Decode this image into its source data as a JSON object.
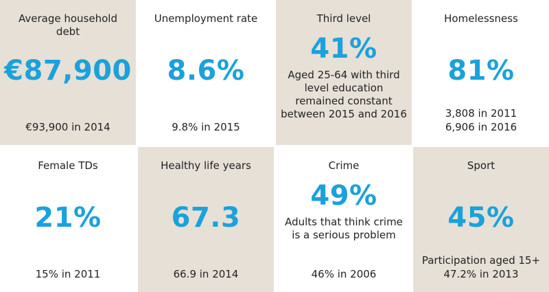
{
  "tiles": [
    {
      "title": "Average household debt",
      "value": "€87,900",
      "notes": [
        "€93,900 in 2014"
      ]
    },
    {
      "title": "Unemployment rate",
      "value": "8.6%",
      "notes": [
        "9.8% in 2015"
      ]
    },
    {
      "title": "Third level",
      "value": "41%",
      "description": "Aged 25-64 with third level education remained constant between 2015 and 2016"
    },
    {
      "title": "Homelessness",
      "value": "81%",
      "notes": [
        "3,808 in 2011",
        "6,906 in 2016"
      ]
    },
    {
      "title": "Female TDs",
      "value": "21%",
      "notes": [
        "15% in 2011"
      ]
    },
    {
      "title": "Healthy life years",
      "value": "67.3",
      "notes": [
        "66.9 in 2014"
      ]
    },
    {
      "title": "Crime",
      "value": "49%",
      "description": "Adults that think crime is a serious problem",
      "notes": [
        "46% in 2006"
      ]
    },
    {
      "title": "Sport",
      "value": "45%",
      "notes": [
        "Participation aged 15+",
        "47.2% in 2013"
      ]
    }
  ]
}
